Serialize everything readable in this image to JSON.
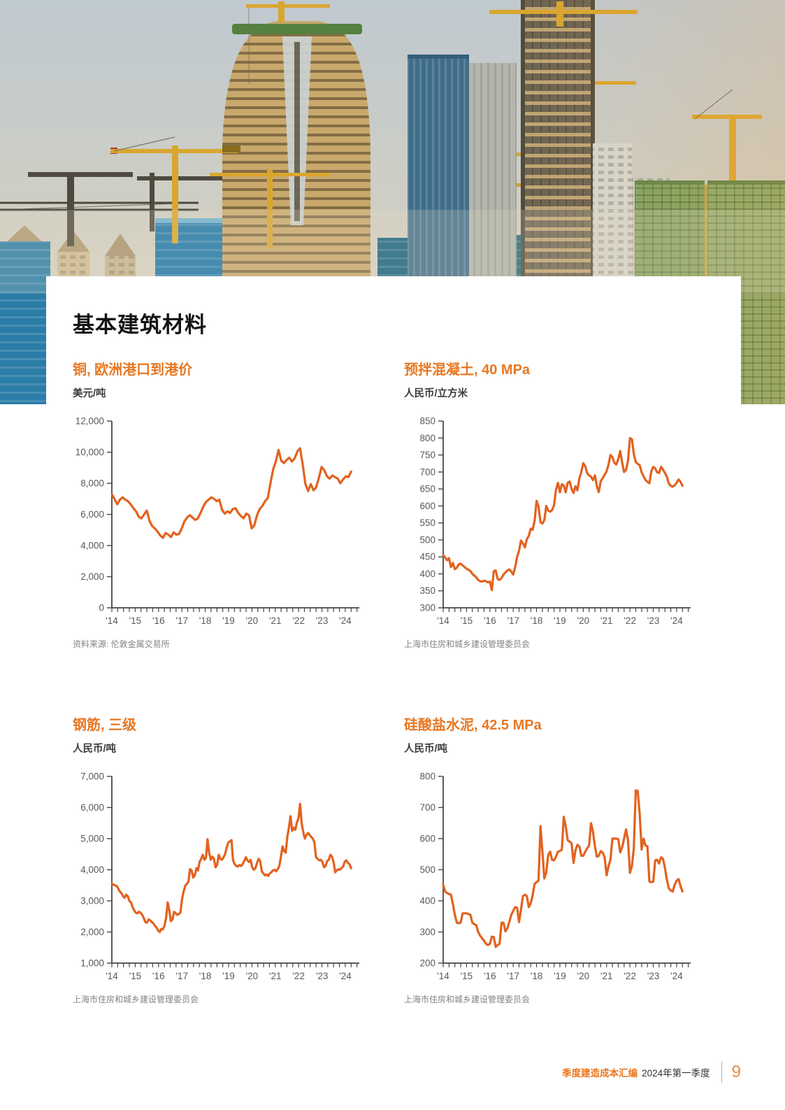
{
  "page": {
    "title": "基本建筑材料",
    "colors": {
      "accent": "#E87722",
      "chart_line": "#E2621F"
    },
    "footer": {
      "doc_title": "季度建造成本汇编",
      "edition": "2024年第一季度",
      "page_number": "9"
    }
  },
  "chart_data": [
    {
      "type": "line",
      "title": "铜, 欧洲港口到港价",
      "unit": "美元/吨",
      "source": "资料来源: 伦敦金属交易所",
      "y_min": 0,
      "y_max": 12000,
      "y_step": 2000,
      "y_ticks": [
        "0",
        "2,000",
        "4,000",
        "6,000",
        "8,000",
        "10,000",
        "12,000"
      ],
      "x_labels": [
        "'14",
        "'15",
        "'16",
        "'17",
        "'18",
        "'19",
        "'20",
        "'21",
        "'22",
        "'23",
        "'24"
      ],
      "x_range_years": [
        2014,
        2024.25
      ],
      "grid": false,
      "legend": "none",
      "values": [
        7300,
        7000,
        6650,
        6950,
        7100,
        6950,
        6850,
        6650,
        6400,
        6200,
        5850,
        5750,
        6000,
        6250,
        5600,
        5250,
        5100,
        4900,
        4650,
        4500,
        4800,
        4700,
        4550,
        4850,
        4700,
        4750,
        5100,
        5550,
        5800,
        5950,
        5800,
        5650,
        5750,
        6100,
        6500,
        6800,
        6950,
        7100,
        7000,
        6850,
        6950,
        6300,
        6050,
        6200,
        6100,
        6350,
        6400,
        6100,
        5900,
        5750,
        6050,
        5950,
        5100,
        5300,
        5950,
        6350,
        6550,
        6850,
        7050,
        8000,
        8900,
        9400,
        10150,
        9450,
        9300,
        9500,
        9650,
        9400,
        9600,
        10050,
        10250,
        9200,
        7950,
        7500,
        7950,
        7550,
        7750,
        8350,
        9050,
        8850,
        8450,
        8300,
        8500,
        8400,
        8300,
        8000,
        8250,
        8450,
        8400,
        8750
      ]
    },
    {
      "type": "line",
      "title": "预拌混凝土, 40 MPa",
      "unit": "人民币/立方米",
      "source": "上海市住房和城乡建设管理委员会",
      "y_min": 300,
      "y_max": 850,
      "y_step": 50,
      "y_ticks": [
        "300",
        "350",
        "400",
        "450",
        "500",
        "550",
        "600",
        "650",
        "700",
        "750",
        "800",
        "850"
      ],
      "x_labels": [
        "'14",
        "'15",
        "'16",
        "'17",
        "'18",
        "'19",
        "'20",
        "'21",
        "'22",
        "'23",
        "'24"
      ],
      "x_range_years": [
        2014,
        2024.25
      ],
      "grid": false,
      "legend": "none",
      "values": [
        455,
        448,
        440,
        446,
        420,
        432,
        414,
        418,
        428,
        430,
        425,
        420,
        415,
        412,
        408,
        400,
        395,
        390,
        382,
        378,
        377,
        380,
        378,
        375,
        377,
        352,
        408,
        410,
        385,
        382,
        388,
        398,
        404,
        410,
        413,
        407,
        398,
        420,
        450,
        468,
        498,
        490,
        478,
        502,
        512,
        533,
        530,
        556,
        615,
        598,
        552,
        548,
        558,
        600,
        586,
        583,
        588,
        602,
        648,
        668,
        640,
        664,
        660,
        640,
        668,
        672,
        650,
        638,
        658,
        646,
        680,
        700,
        726,
        717,
        697,
        690,
        686,
        676,
        690,
        658,
        641,
        673,
        682,
        692,
        702,
        722,
        750,
        744,
        727,
        722,
        738,
        762,
        728,
        700,
        706,
        733,
        800,
        796,
        754,
        729,
        724,
        720,
        699,
        687,
        677,
        671,
        667,
        702,
        715,
        711,
        699,
        697,
        715,
        707,
        697,
        686,
        666,
        659,
        657,
        661,
        668,
        678,
        671,
        659
      ]
    },
    {
      "type": "line",
      "title": "钢筋, 三级",
      "unit": "人民币/吨",
      "source": "上海市住房和城乡建设管理委员会",
      "y_min": 1000,
      "y_max": 7000,
      "y_step": 1000,
      "y_ticks": [
        "1,000",
        "2,000",
        "3,000",
        "4,000",
        "5,000",
        "6,000",
        "7,000"
      ],
      "x_labels": [
        "'14",
        "'15",
        "'16",
        "'17",
        "'18",
        "'19",
        "'20",
        "'21",
        "'22",
        "'23",
        "'24"
      ],
      "x_range_years": [
        2014,
        2024.25
      ],
      "grid": false,
      "legend": "none",
      "values": [
        3550,
        3520,
        3500,
        3480,
        3400,
        3300,
        3250,
        3150,
        3100,
        3200,
        3150,
        3000,
        2950,
        2800,
        2700,
        2620,
        2600,
        2650,
        2620,
        2550,
        2450,
        2320,
        2300,
        2400,
        2380,
        2320,
        2280,
        2200,
        2150,
        2050,
        2000,
        2100,
        2080,
        2200,
        2450,
        2950,
        2700,
        2350,
        2400,
        2650,
        2600,
        2550,
        2580,
        2620,
        3050,
        3300,
        3480,
        3550,
        3600,
        4020,
        3980,
        3750,
        3820,
        4050,
        3980,
        4250,
        4350,
        4480,
        4320,
        4380,
        4980,
        4550,
        4320,
        4420,
        4350,
        4080,
        4150,
        4480,
        4350,
        4320,
        4400,
        4500,
        4720,
        4870,
        4920,
        4950,
        4300,
        4180,
        4120,
        4100,
        4150,
        4120,
        4180,
        4280,
        4400,
        4300,
        4250,
        4320,
        4080,
        4000,
        4050,
        4220,
        4350,
        4280,
        3950,
        3880,
        3820,
        3850,
        3800,
        3880,
        3920,
        3980,
        4000,
        3950,
        4020,
        4120,
        4420,
        4750,
        4600,
        4550,
        5050,
        5350,
        5720,
        5250,
        5350,
        5280,
        5520,
        5650,
        6120,
        5480,
        5220,
        5000,
        5120,
        5180,
        5120,
        5050,
        5000,
        4880,
        4400,
        4350,
        4300,
        4320,
        4250,
        4080,
        4120,
        4280,
        4320,
        4480,
        4420,
        4250,
        3920,
        3980,
        4020,
        4000,
        4060,
        4100,
        4260,
        4300,
        4220,
        4180,
        4050
      ]
    },
    {
      "type": "line",
      "title": "硅酸盐水泥, 42.5 MPa",
      "unit": "人民币/吨",
      "source": "上海市住房和城乡建设管理委员会",
      "y_min": 200,
      "y_max": 800,
      "y_step": 100,
      "y_ticks": [
        "200",
        "300",
        "400",
        "500",
        "600",
        "700",
        "800"
      ],
      "x_labels": [
        "'14",
        "'15",
        "'16",
        "'17",
        "'18",
        "'19",
        "'20",
        "'21",
        "'22",
        "'23",
        "'24"
      ],
      "x_range_years": [
        2014,
        2024.25
      ],
      "grid": false,
      "legend": "none",
      "values": [
        452,
        430,
        425,
        422,
        420,
        390,
        355,
        330,
        328,
        330,
        360,
        360,
        360,
        358,
        355,
        330,
        325,
        322,
        300,
        288,
        280,
        272,
        262,
        258,
        262,
        285,
        284,
        252,
        258,
        262,
        330,
        330,
        302,
        312,
        332,
        355,
        368,
        380,
        378,
        332,
        372,
        415,
        420,
        415,
        380,
        392,
        418,
        455,
        460,
        465,
        640,
        560,
        472,
        492,
        548,
        558,
        532,
        530,
        542,
        558,
        560,
        565,
        670,
        640,
        595,
        590,
        585,
        522,
        562,
        580,
        575,
        545,
        545,
        558,
        568,
        578,
        650,
        622,
        575,
        542,
        545,
        560,
        555,
        540,
        482,
        512,
        532,
        600,
        600,
        600,
        598,
        556,
        572,
        600,
        630,
        595,
        490,
        512,
        568,
        755,
        753,
        680,
        565,
        600,
        578,
        575,
        462,
        460,
        462,
        530,
        532,
        520,
        540,
        535,
        505,
        468,
        440,
        433,
        430,
        452,
        465,
        470,
        448,
        430
      ]
    }
  ]
}
